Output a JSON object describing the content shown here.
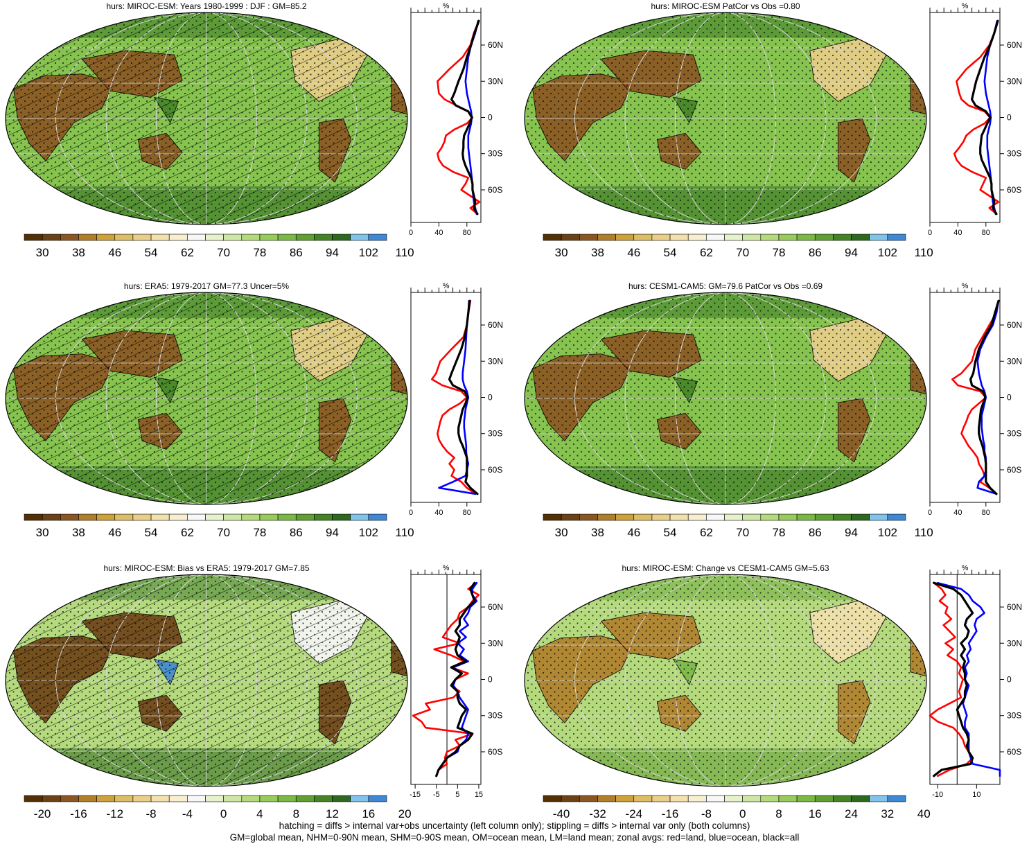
{
  "colorbars": {
    "abs": {
      "colors": [
        "#543005",
        "#6d4116",
        "#8c5622",
        "#b07f2c",
        "#cda23b",
        "#ddbd65",
        "#eacf8a",
        "#f3e1ad",
        "#f8eed0",
        "#f7f7f7",
        "#e6f2cc",
        "#cfe7a6",
        "#b5da7e",
        "#98ca5c",
        "#7bb946",
        "#5f9f34",
        "#448427",
        "#2d6a1f",
        "#82c3ea",
        "#3f88d4"
      ],
      "labels": [
        "30",
        "38",
        "46",
        "54",
        "62",
        "70",
        "78",
        "86",
        "94",
        "102",
        "110"
      ]
    },
    "bias": {
      "colors": [
        "#543005",
        "#6d4116",
        "#8c5622",
        "#b07f2c",
        "#cda23b",
        "#ddbd65",
        "#eacf8a",
        "#f3e1ad",
        "#f8eed0",
        "#f7f7f7",
        "#e6f2cc",
        "#cfe7a6",
        "#b5da7e",
        "#98ca5c",
        "#7bb946",
        "#5f9f34",
        "#448427",
        "#2d6a1f",
        "#82c3ea",
        "#3f88d4"
      ],
      "labels": [
        "-20",
        "-16",
        "-12",
        "-8",
        "-4",
        "0",
        "4",
        "8",
        "12",
        "16",
        "20"
      ]
    },
    "change": {
      "colors": [
        "#543005",
        "#6d4116",
        "#8c5622",
        "#b07f2c",
        "#cda23b",
        "#ddbd65",
        "#eacf8a",
        "#f3e1ad",
        "#f8eed0",
        "#f7f7f7",
        "#e6f2cc",
        "#cfe7a6",
        "#b5da7e",
        "#98ca5c",
        "#7bb946",
        "#5f9f34",
        "#448427",
        "#2d6a1f",
        "#82c3ea",
        "#3f88d4"
      ],
      "labels": [
        "-40",
        "-32",
        "-24",
        "-16",
        "-8",
        "0",
        "8",
        "16",
        "24",
        "32",
        "40"
      ]
    }
  },
  "chart_data": [
    {
      "type": "heatmap",
      "title": "hurs: MIROC-ESM: Years 1980-1999 : DJF : GM=85.2",
      "colorbar": "abs",
      "zonal": {
        "type": "line",
        "unit_label": "%",
        "xlim": [
          0,
          100
        ],
        "xticks": [
          "0",
          "40",
          "80"
        ],
        "lat_labels": [
          "60N",
          "30N",
          "0",
          "30S",
          "60S"
        ],
        "x_ref": null,
        "lat": [
          80,
          70,
          60,
          50,
          40,
          30,
          20,
          15,
          10,
          5,
          0,
          -5,
          -10,
          -15,
          -20,
          -25,
          -30,
          -35,
          -40,
          -45,
          -50,
          -55,
          -60,
          -70,
          -75,
          -80
        ],
        "series": [
          {
            "name": "land",
            "color": "#ff0000",
            "values": [
              97,
              90,
              85,
              74,
              55,
              38,
              40,
              48,
              65,
              82,
              88,
              80,
              62,
              50,
              48,
              44,
              38,
              40,
              46,
              60,
              82,
              78,
              72,
              98,
              85,
              95
            ]
          },
          {
            "name": "ocean",
            "color": "#0000ff",
            "values": [
              96,
              92,
              86,
              82,
              80,
              78,
              80,
              82,
              84,
              86,
              87,
              86,
              84,
              82,
              82,
              82,
              83,
              84,
              85,
              86,
              87,
              88,
              88,
              90,
              92,
              94
            ]
          },
          {
            "name": "all",
            "color": "#000000",
            "values": [
              97,
              91,
              86,
              80,
              75,
              68,
              62,
              58,
              64,
              82,
              87,
              84,
              80,
              76,
              75,
              75,
              74,
              75,
              78,
              82,
              86,
              88,
              88,
              92,
              90,
              95
            ]
          }
        ]
      }
    },
    {
      "type": "heatmap",
      "title": "hurs: MIROC-ESM PatCor vs Obs =0.80",
      "colorbar": "abs",
      "zonal": {
        "type": "line",
        "unit_label": "%",
        "xlim": [
          0,
          100
        ],
        "xticks": [
          "0",
          "40",
          "80"
        ],
        "lat_labels": [
          "60N",
          "30N",
          "0",
          "30S",
          "60S"
        ],
        "x_ref": null,
        "lat": [
          80,
          70,
          60,
          50,
          40,
          30,
          20,
          15,
          10,
          5,
          0,
          -5,
          -10,
          -15,
          -20,
          -25,
          -30,
          -35,
          -40,
          -45,
          -50,
          -55,
          -60,
          -70,
          -75,
          -80
        ],
        "series": [
          {
            "name": "land",
            "color": "#ff0000",
            "values": [
              97,
              92,
              85,
              72,
              52,
              38,
              42,
              45,
              55,
              78,
              86,
              78,
              62,
              52,
              48,
              42,
              35,
              38,
              45,
              60,
              80,
              76,
              72,
              98,
              85,
              95
            ]
          },
          {
            "name": "ocean",
            "color": "#0000ff",
            "values": [
              96,
              92,
              86,
              82,
              80,
              78,
              80,
              82,
              84,
              86,
              87,
              86,
              84,
              82,
              82,
              82,
              83,
              84,
              85,
              86,
              87,
              88,
              88,
              90,
              92,
              94
            ]
          },
          {
            "name": "all",
            "color": "#000000",
            "values": [
              97,
              92,
              86,
              78,
              72,
              66,
              62,
              60,
              65,
              80,
              86,
              82,
              78,
              74,
              73,
              72,
              72,
              74,
              78,
              82,
              86,
              88,
              88,
              92,
              90,
              95
            ]
          }
        ]
      }
    },
    {
      "type": "heatmap",
      "title": "hurs: ERA5: 1979-2017 GM=77.3 Uncer=5%",
      "colorbar": "abs",
      "zonal": {
        "type": "line",
        "unit_label": "%",
        "xlim": [
          0,
          100
        ],
        "xticks": [
          "0",
          "40",
          "80"
        ],
        "lat_labels": [
          "60N",
          "30N",
          "0",
          "30S",
          "60S"
        ],
        "x_ref": null,
        "lat": [
          80,
          70,
          60,
          50,
          40,
          30,
          20,
          15,
          10,
          5,
          0,
          -5,
          -10,
          -15,
          -20,
          -25,
          -30,
          -35,
          -40,
          -45,
          -50,
          -55,
          -60,
          -65,
          -70,
          -75,
          -80
        ],
        "series": [
          {
            "name": "land",
            "color": "#ff0000",
            "values": [
              85,
              82,
              80,
              75,
              58,
              42,
              36,
              30,
              45,
              72,
              80,
              70,
              55,
              45,
              42,
              40,
              38,
              40,
              45,
              52,
              62,
              55,
              62,
              58,
              72,
              80,
              92
            ]
          },
          {
            "name": "ocean",
            "color": "#0000ff",
            "values": [
              83,
              82,
              80,
              79,
              78,
              76,
              74,
              74,
              76,
              80,
              82,
              80,
              78,
              77,
              76,
              76,
              77,
              78,
              79,
              79,
              80,
              82,
              80,
              78,
              60,
              40,
              92
            ]
          },
          {
            "name": "all",
            "color": "#000000",
            "values": [
              84,
              82,
              80,
              77,
              72,
              65,
              58,
              55,
              60,
              77,
              81,
              78,
              74,
              72,
              70,
              68,
              68,
              70,
              74,
              77,
              80,
              80,
              80,
              80,
              78,
              85,
              95
            ]
          }
        ]
      }
    },
    {
      "type": "heatmap",
      "title": "hurs: CESM1-CAM5: GM=79.6 PatCor vs Obs =0.69",
      "colorbar": "abs",
      "zonal": {
        "type": "line",
        "unit_label": "%",
        "xlim": [
          0,
          100
        ],
        "xticks": [
          "0",
          "40",
          "80"
        ],
        "lat_labels": [
          "60N",
          "30N",
          "0",
          "30S",
          "60S"
        ],
        "x_ref": null,
        "lat": [
          80,
          70,
          60,
          50,
          40,
          30,
          20,
          15,
          10,
          5,
          0,
          -5,
          -10,
          -15,
          -20,
          -25,
          -30,
          -35,
          -40,
          -45,
          -50,
          -55,
          -60,
          -65,
          -70,
          -75,
          -80
        ],
        "series": [
          {
            "name": "land",
            "color": "#ff0000",
            "values": [
              98,
              95,
              85,
              75,
              65,
              60,
              45,
              32,
              40,
              72,
              80,
              70,
              60,
              55,
              52,
              48,
              45,
              50,
              55,
              62,
              68,
              70,
              75,
              78,
              72,
              85,
              95
            ]
          },
          {
            "name": "ocean",
            "color": "#0000ff",
            "values": [
              98,
              95,
              90,
              80,
              72,
              68,
              70,
              72,
              74,
              78,
              80,
              78,
              76,
              74,
              74,
              74,
              75,
              76,
              78,
              78,
              80,
              80,
              80,
              78,
              70,
              68,
              95
            ]
          },
          {
            "name": "all",
            "color": "#000000",
            "values": [
              98,
              93,
              88,
              78,
              70,
              65,
              62,
              58,
              60,
              76,
              79,
              76,
              73,
              72,
              71,
              70,
              70,
              72,
              75,
              77,
              79,
              80,
              80,
              80,
              80,
              86,
              95
            ]
          }
        ]
      }
    },
    {
      "type": "heatmap",
      "title": "hurs: MIROC-ESM: Bias vs ERA5: 1979-2017 GM=7.85",
      "colorbar": "bias",
      "zonal": {
        "type": "line",
        "unit_label": "%",
        "xlim": [
          -17,
          16
        ],
        "xticks": [
          "-15",
          "-5",
          "5",
          "15"
        ],
        "lat_labels": [
          "60N",
          "30N",
          "0",
          "30S",
          "60S"
        ],
        "x_ref": 0,
        "lat": [
          80,
          75,
          70,
          65,
          60,
          55,
          50,
          45,
          40,
          35,
          30,
          25,
          20,
          15,
          10,
          5,
          0,
          -5,
          -10,
          -15,
          -20,
          -25,
          -30,
          -35,
          -40,
          -45,
          -50,
          -55,
          -60,
          -65,
          -70,
          -75,
          -80
        ],
        "series": [
          {
            "name": "land",
            "color": "#ff0000",
            "values": [
              14,
              10,
              15,
              12,
              10,
              6,
              5,
              2,
              0,
              -2,
              6,
              -6,
              2,
              8,
              2,
              10,
              4,
              2,
              6,
              3,
              -10,
              -8,
              -16,
              -12,
              -10,
              12,
              4,
              6,
              0,
              -1,
              0,
              -4,
              -5
            ]
          },
          {
            "name": "ocean",
            "color": "#0000ff",
            "values": [
              14,
              12,
              12,
              14,
              11,
              10,
              8,
              10,
              6,
              9,
              5,
              8,
              6,
              10,
              3,
              7,
              4,
              3,
              5,
              6,
              8,
              10,
              9,
              8,
              7,
              10,
              9,
              6,
              5,
              0,
              -2,
              -4,
              -5
            ]
          },
          {
            "name": "all",
            "color": "#000000",
            "values": [
              13,
              11,
              12,
              13,
              10,
              8,
              6,
              6,
              4,
              6,
              5,
              4,
              5,
              9,
              2,
              7,
              4,
              2,
              5,
              5,
              6,
              9,
              7,
              6,
              5,
              12,
              10,
              6,
              4,
              0,
              -2,
              -4,
              -5
            ]
          }
        ]
      }
    },
    {
      "type": "heatmap",
      "title": "hurs: MIROC-ESM: Change vs CESM1-CAM5 GM=5.63",
      "colorbar": "change",
      "zonal": {
        "type": "line",
        "unit_label": "%",
        "xlim": [
          -14,
          22
        ],
        "xticks": [
          "-10",
          "10"
        ],
        "lat_labels": [
          "60N",
          "30N",
          "0",
          "30S",
          "60S"
        ],
        "x_ref": 0,
        "lat": [
          80,
          75,
          70,
          65,
          60,
          55,
          50,
          45,
          40,
          35,
          30,
          25,
          20,
          15,
          10,
          5,
          0,
          -5,
          -10,
          -15,
          -20,
          -25,
          -30,
          -35,
          -40,
          -45,
          -50,
          -55,
          -60,
          -65,
          -70,
          -75,
          -80
        ],
        "series": [
          {
            "name": "land",
            "color": "#ff0000",
            "values": [
              -12,
              -8,
              -6,
              -9,
              -5,
              -6,
              -3,
              -7,
              -4,
              -1,
              -6,
              -2,
              -5,
              0,
              2,
              1,
              3,
              2,
              1,
              2,
              -4,
              -10,
              -14,
              -10,
              -2,
              1,
              3,
              4,
              6,
              8,
              5,
              -4,
              -10
            ]
          },
          {
            "name": "ocean",
            "color": "#0000ff",
            "values": [
              -10,
              2,
              6,
              8,
              12,
              14,
              10,
              9,
              10,
              8,
              6,
              7,
              5,
              6,
              4,
              5,
              4,
              6,
              5,
              4,
              3,
              4,
              5,
              4,
              4,
              6,
              6,
              6,
              6,
              7,
              8,
              22,
              22
            ]
          },
          {
            "name": "all",
            "color": "#000000",
            "values": [
              -12,
              -2,
              2,
              4,
              6,
              8,
              5,
              4,
              6,
              5,
              2,
              4,
              2,
              4,
              3,
              4,
              4,
              5,
              4,
              4,
              2,
              0,
              1,
              2,
              3,
              5,
              6,
              5,
              6,
              8,
              7,
              -8,
              -12
            ]
          }
        ]
      }
    }
  ],
  "footer": {
    "line1": "hatching = diffs > internal var+obs uncertainty (left column only); stippling = diffs > internal var only (both columns)",
    "line2": "GM=global mean, NHM=0-90N mean, SHM=0-90S mean, OM=ocean mean, LM=land mean; zonal avgs: red=land, blue=ocean, black=all"
  }
}
